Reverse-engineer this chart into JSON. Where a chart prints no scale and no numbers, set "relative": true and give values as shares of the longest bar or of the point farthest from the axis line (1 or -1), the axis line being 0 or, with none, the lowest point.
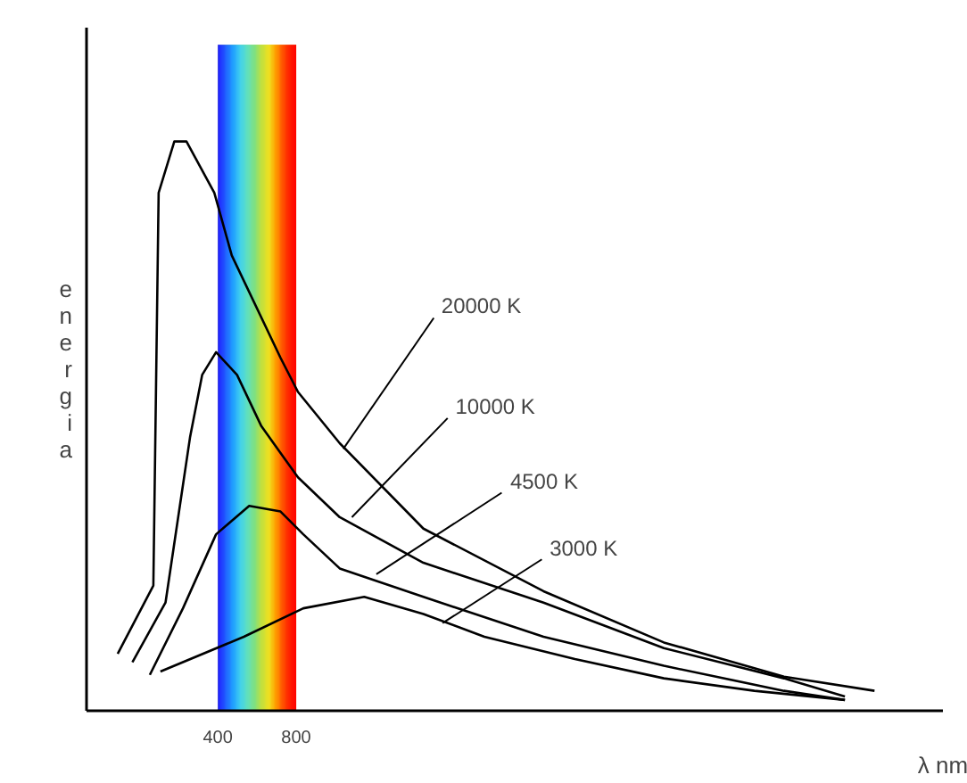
{
  "chart_data": {
    "type": "line",
    "relative": true,
    "xlabel": "λ nm",
    "ylabel": "energia",
    "xlim": [
      -270,
      4100
    ],
    "xticks": [
      400,
      800
    ],
    "grid": false,
    "marker": "none",
    "line_style": "solid",
    "bands": [
      {
        "axis": "x",
        "from": 400,
        "to": 800
      }
    ],
    "series": [
      {
        "color": "#000000",
        "x": [
          -111,
          71,
          98,
          178,
          240,
          382,
          471,
          720,
          809,
          1022,
          1449,
          2062,
          2676,
          3289,
          3751
        ],
        "values": [
          0.1,
          0.22,
          0.91,
          1.0,
          1.0,
          0.91,
          0.8,
          0.62,
          0.56,
          0.47,
          0.32,
          0.21,
          0.12,
          0.06,
          0.035
        ]
      },
      {
        "color": "#000000",
        "x": [
          -36,
          133,
          258,
          320,
          391,
          498,
          622,
          809,
          1022,
          1449,
          2062,
          2676,
          3289,
          3600
        ],
        "values": [
          0.085,
          0.19,
          0.48,
          0.59,
          0.63,
          0.59,
          0.5,
          0.41,
          0.34,
          0.26,
          0.19,
          0.11,
          0.057,
          0.025
        ]
      },
      {
        "color": "#000000",
        "x": [
          53,
          222,
          391,
          560,
          720,
          836,
          1022,
          1449,
          2062,
          2676,
          3289,
          3600
        ],
        "values": [
          0.063,
          0.18,
          0.31,
          0.36,
          0.35,
          0.31,
          0.25,
          0.2,
          0.13,
          0.079,
          0.035,
          0.019
        ]
      },
      {
        "color": "#000000",
        "x": [
          107,
          533,
          836,
          1147,
          1449,
          1760,
          2222,
          2676,
          3138,
          3600
        ],
        "values": [
          0.069,
          0.13,
          0.18,
          0.2,
          0.17,
          0.13,
          0.091,
          0.057,
          0.035,
          0.019
        ]
      }
    ],
    "annotations": [
      {
        "text": "20000 K",
        "x": 1040,
        "y": 0.46
      },
      {
        "text": "10000 K",
        "x": 1084,
        "y": 0.34
      },
      {
        "text": "4500 K",
        "x": 1209,
        "y": 0.24
      },
      {
        "text": "3000 K",
        "x": 1547,
        "y": 0.154
      }
    ]
  }
}
